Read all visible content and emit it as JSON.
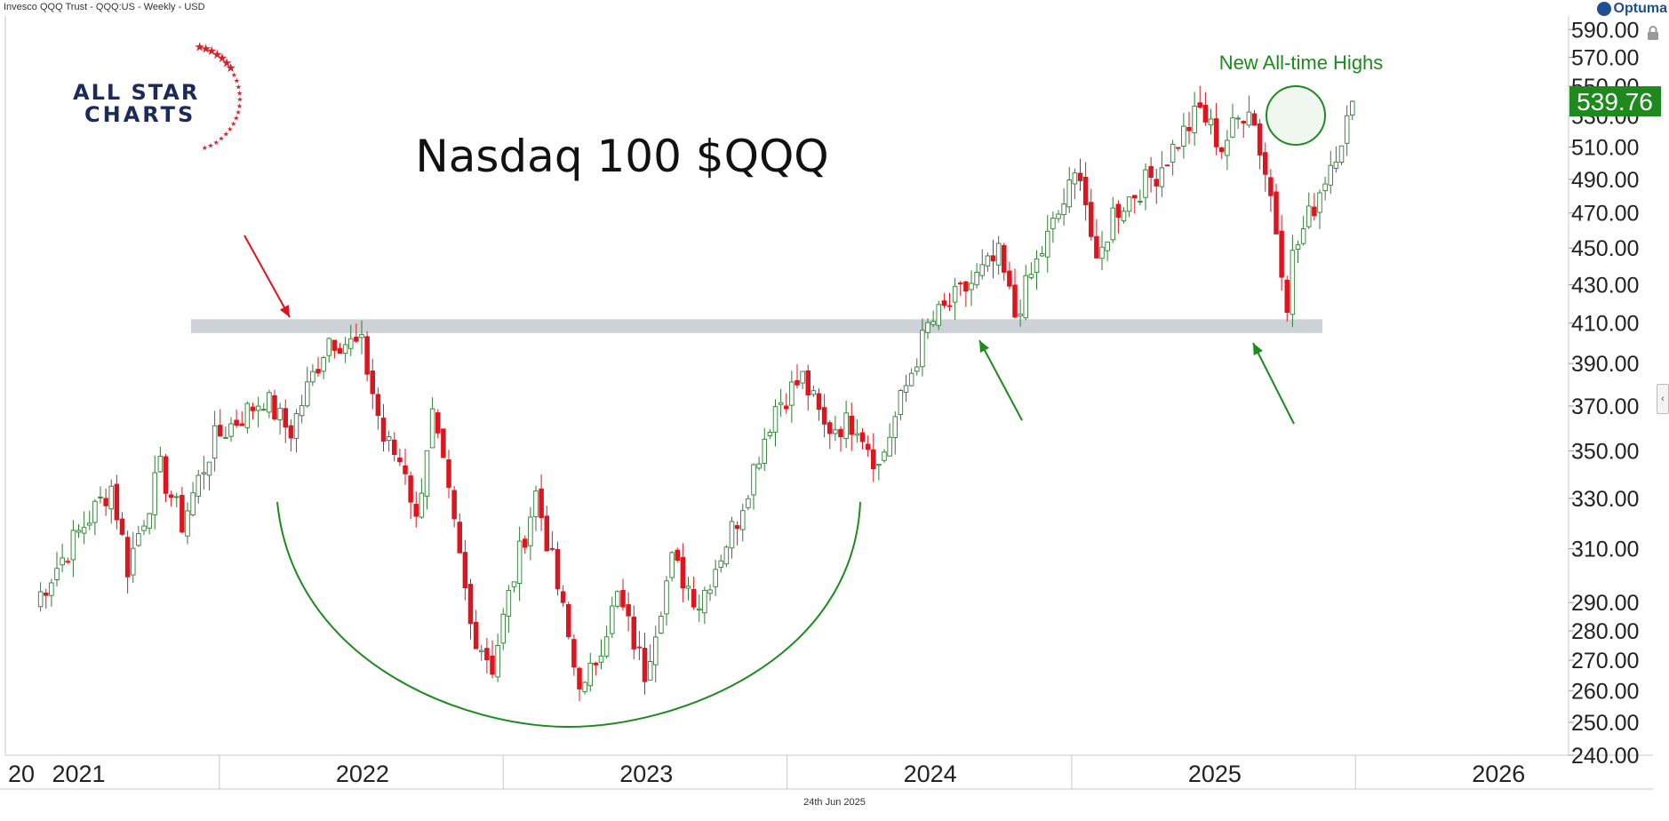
{
  "header": {
    "instrument": "Invesco QQQ Trust - QQQ:US - Weekly - USD",
    "brand": "Optuma"
  },
  "logo": {
    "line1": "ALL STAR",
    "line2": "CHARTS"
  },
  "footer": {
    "date": "24th Jun 2025"
  },
  "colors": {
    "up": "#2e7d32",
    "down": "#e0141e",
    "resistance_band": "#c9cdd2",
    "annotation_green": "#1e8a1e",
    "annotation_red": "#e0141e",
    "last_price_bg": "#1e8a1e",
    "logo_navy": "#1b2a5a",
    "logo_red": "#d6202c"
  },
  "chart_data": {
    "type": "candlestick",
    "title": "Nasdaq 100 $QQQ",
    "annotation": "New All-time Highs",
    "last_price": "539.76",
    "x_labels": [
      "20",
      "2021",
      "2022",
      "2023",
      "2024",
      "2025",
      "2026"
    ],
    "x_range": [
      "2020-10",
      "2026-04"
    ],
    "y_ticks": [
      "590.00",
      "570.00",
      "550.00",
      "530.00",
      "510.00",
      "490.00",
      "470.00",
      "450.00",
      "430.00",
      "410.00",
      "390.00",
      "370.00",
      "350.00",
      "330.00",
      "310.00",
      "290.00",
      "280.00",
      "270.00",
      "260.00",
      "250.00",
      "240.00"
    ],
    "y_scale": "log",
    "y_range": [
      240,
      600
    ],
    "resistance_band": [
      405,
      412
    ],
    "grid": false,
    "weekly_close_anchors": [
      [
        "2020-11-06",
        290
      ],
      [
        "2020-12-25",
        313
      ],
      [
        "2021-02-12",
        335
      ],
      [
        "2021-03-05",
        303
      ],
      [
        "2021-04-16",
        342
      ],
      [
        "2021-05-14",
        320
      ],
      [
        "2021-06-25",
        355
      ],
      [
        "2021-08-27",
        374
      ],
      [
        "2021-09-30",
        358
      ],
      [
        "2021-11-19",
        403
      ],
      [
        "2021-12-31",
        398
      ],
      [
        "2022-01-28",
        355
      ],
      [
        "2022-02-25",
        343
      ],
      [
        "2022-03-11",
        320
      ],
      [
        "2022-03-31",
        367
      ],
      [
        "2022-05-20",
        282
      ],
      [
        "2022-06-17",
        268
      ],
      [
        "2022-08-12",
        332
      ],
      [
        "2022-09-30",
        268
      ],
      [
        "2022-10-14",
        260
      ],
      [
        "2022-11-25",
        292
      ],
      [
        "2022-12-30",
        266
      ],
      [
        "2023-01-20",
        290
      ],
      [
        "2023-02-03",
        305
      ],
      [
        "2023-03-10",
        290
      ],
      [
        "2023-04-28",
        322
      ],
      [
        "2023-06-16",
        370
      ],
      [
        "2023-07-21",
        383
      ],
      [
        "2023-08-18",
        360
      ],
      [
        "2023-09-29",
        363
      ],
      [
        "2023-10-27",
        343
      ],
      [
        "2023-12-29",
        408
      ],
      [
        "2024-03-29",
        445
      ],
      [
        "2024-04-19",
        414
      ],
      [
        "2024-07-12",
        497
      ],
      [
        "2024-08-02",
        437
      ],
      [
        "2024-08-23",
        470
      ],
      [
        "2024-10-18",
        494
      ],
      [
        "2024-12-13",
        534
      ],
      [
        "2025-01-10",
        510
      ],
      [
        "2025-02-14",
        539
      ],
      [
        "2025-03-14",
        480
      ],
      [
        "2025-04-04",
        422
      ],
      [
        "2025-04-11",
        445
      ],
      [
        "2025-05-09",
        475
      ],
      [
        "2025-06-20",
        526
      ],
      [
        "2025-06-27",
        539.76
      ]
    ]
  }
}
